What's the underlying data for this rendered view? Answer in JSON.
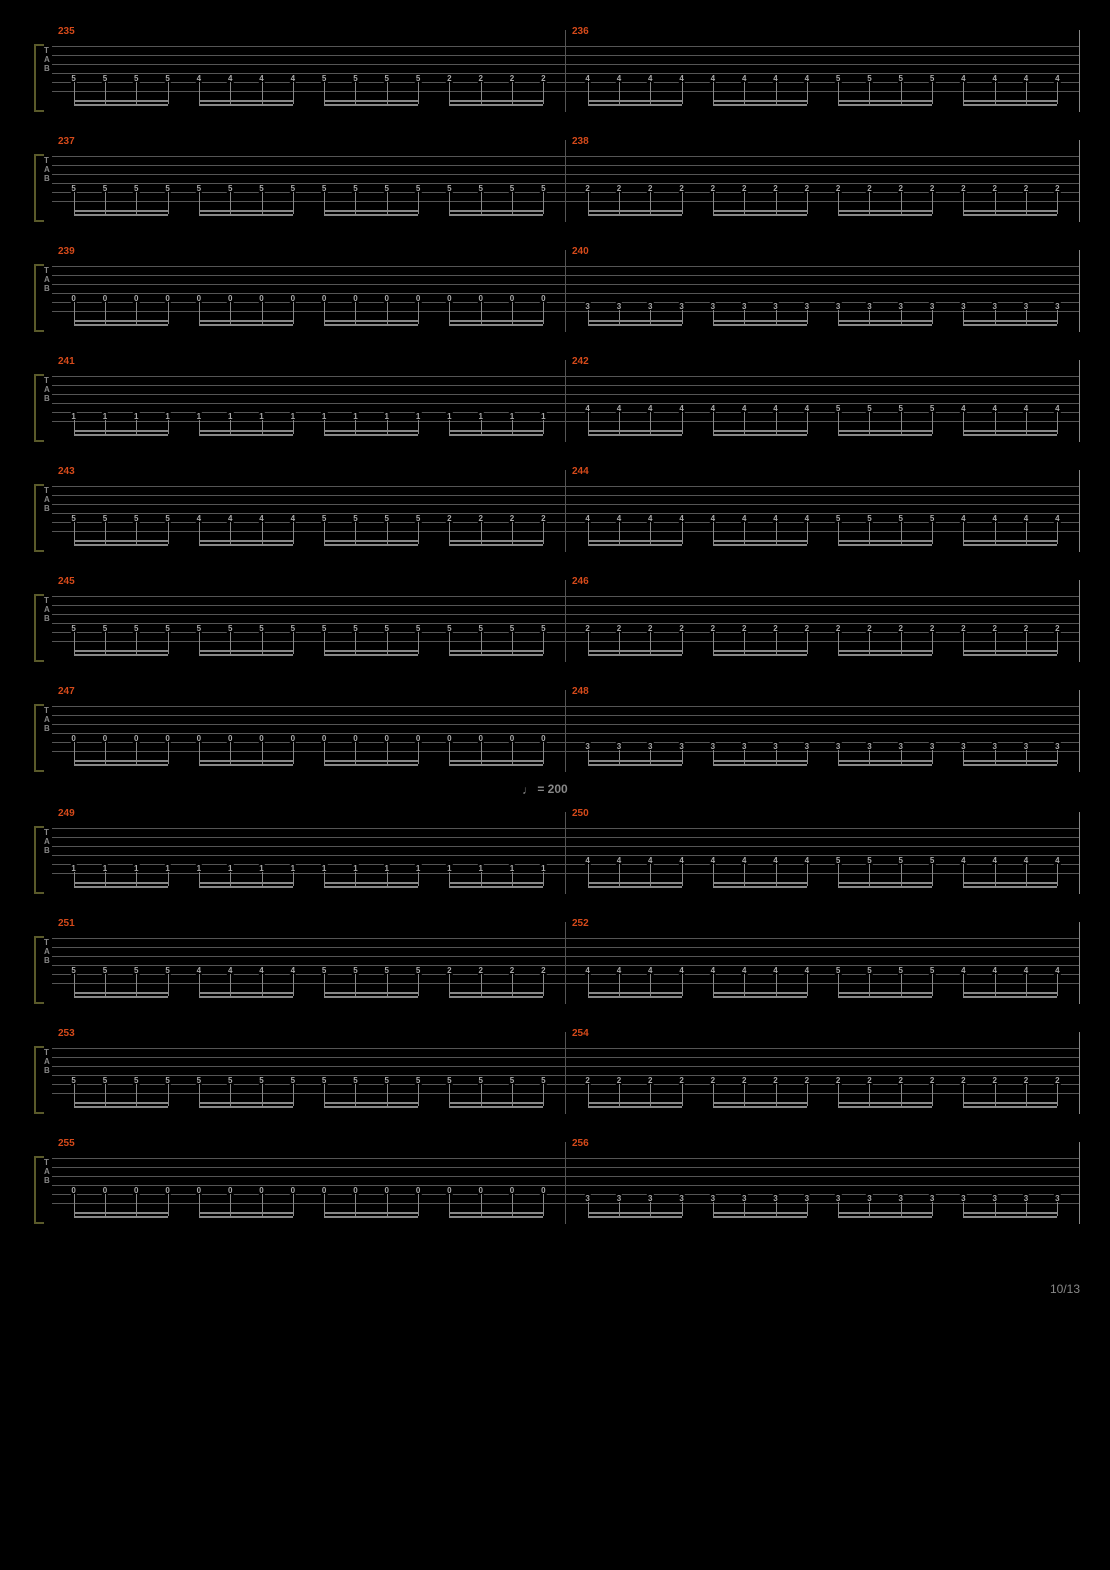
{
  "page_number": "10/13",
  "background_color": "#000000",
  "measure_number_color": "#d64a1a",
  "staff_line_color": "#555555",
  "note_color": "#aaaaaa",
  "beam_color": "#888888",
  "tab_label_color": "#888888",
  "tab_bracket_color": "#5a5a2a",
  "tab_letters": [
    "T",
    "A",
    "B"
  ],
  "tempo_marking": {
    "before_measure": 250,
    "text": "= 200",
    "note_symbol": "♩"
  },
  "string_count": 6,
  "systems": [
    {
      "measures": [
        {
          "number": "235",
          "groups": [
            [
              "5",
              "5",
              "5",
              "5"
            ],
            [
              "4",
              "4",
              "4",
              "4"
            ],
            [
              "5",
              "5",
              "5",
              "5"
            ],
            [
              "2",
              "2",
              "2",
              "2"
            ]
          ],
          "string": 5
        },
        {
          "number": "236",
          "groups": [
            [
              "4",
              "4",
              "4",
              "4"
            ],
            [
              "4",
              "4",
              "4",
              "4"
            ],
            [
              "5",
              "5",
              "5",
              "5"
            ],
            [
              "4",
              "4",
              "4",
              "4"
            ]
          ],
          "string": 5
        }
      ]
    },
    {
      "measures": [
        {
          "number": "237",
          "groups": [
            [
              "5",
              "5",
              "5",
              "5"
            ],
            [
              "5",
              "5",
              "5",
              "5"
            ],
            [
              "5",
              "5",
              "5",
              "5"
            ],
            [
              "5",
              "5",
              "5",
              "5"
            ]
          ],
          "string": 5
        },
        {
          "number": "238",
          "groups": [
            [
              "2",
              "2",
              "2",
              "2"
            ],
            [
              "2",
              "2",
              "2",
              "2"
            ],
            [
              "2",
              "2",
              "2",
              "2"
            ],
            [
              "2",
              "2",
              "2",
              "2"
            ]
          ],
          "string": 5
        }
      ]
    },
    {
      "measures": [
        {
          "number": "239",
          "groups": [
            [
              "0",
              "0",
              "0",
              "0"
            ],
            [
              "0",
              "0",
              "0",
              "0"
            ],
            [
              "0",
              "0",
              "0",
              "0"
            ],
            [
              "0",
              "0",
              "0",
              "0"
            ]
          ],
          "string": 5
        },
        {
          "number": "240",
          "groups": [
            [
              "3",
              "3",
              "3",
              "3"
            ],
            [
              "3",
              "3",
              "3",
              "3"
            ],
            [
              "3",
              "3",
              "3",
              "3"
            ],
            [
              "3",
              "3",
              "3",
              "3"
            ]
          ],
          "string": 6
        }
      ]
    },
    {
      "measures": [
        {
          "number": "241",
          "groups": [
            [
              "1",
              "1",
              "1",
              "1"
            ],
            [
              "1",
              "1",
              "1",
              "1"
            ],
            [
              "1",
              "1",
              "1",
              "1"
            ],
            [
              "1",
              "1",
              "1",
              "1"
            ]
          ],
          "string": 6
        },
        {
          "number": "242",
          "groups": [
            [
              "4",
              "4",
              "4",
              "4"
            ],
            [
              "4",
              "4",
              "4",
              "4"
            ],
            [
              "5",
              "5",
              "5",
              "5"
            ],
            [
              "4",
              "4",
              "4",
              "4"
            ]
          ],
          "string": 5
        }
      ]
    },
    {
      "measures": [
        {
          "number": "243",
          "groups": [
            [
              "5",
              "5",
              "5",
              "5"
            ],
            [
              "4",
              "4",
              "4",
              "4"
            ],
            [
              "5",
              "5",
              "5",
              "5"
            ],
            [
              "2",
              "2",
              "2",
              "2"
            ]
          ],
          "string": 5
        },
        {
          "number": "244",
          "groups": [
            [
              "4",
              "4",
              "4",
              "4"
            ],
            [
              "4",
              "4",
              "4",
              "4"
            ],
            [
              "5",
              "5",
              "5",
              "5"
            ],
            [
              "4",
              "4",
              "4",
              "4"
            ]
          ],
          "string": 5
        }
      ]
    },
    {
      "measures": [
        {
          "number": "245",
          "groups": [
            [
              "5",
              "5",
              "5",
              "5"
            ],
            [
              "5",
              "5",
              "5",
              "5"
            ],
            [
              "5",
              "5",
              "5",
              "5"
            ],
            [
              "5",
              "5",
              "5",
              "5"
            ]
          ],
          "string": 5
        },
        {
          "number": "246",
          "groups": [
            [
              "2",
              "2",
              "2",
              "2"
            ],
            [
              "2",
              "2",
              "2",
              "2"
            ],
            [
              "2",
              "2",
              "2",
              "2"
            ],
            [
              "2",
              "2",
              "2",
              "2"
            ]
          ],
          "string": 5
        }
      ]
    },
    {
      "measures": [
        {
          "number": "247",
          "groups": [
            [
              "0",
              "0",
              "0",
              "0"
            ],
            [
              "0",
              "0",
              "0",
              "0"
            ],
            [
              "0",
              "0",
              "0",
              "0"
            ],
            [
              "0",
              "0",
              "0",
              "0"
            ]
          ],
          "string": 5
        },
        {
          "number": "248",
          "groups": [
            [
              "3",
              "3",
              "3",
              "3"
            ],
            [
              "3",
              "3",
              "3",
              "3"
            ],
            [
              "3",
              "3",
              "3",
              "3"
            ],
            [
              "3",
              "3",
              "3",
              "3"
            ]
          ],
          "string": 6
        }
      ]
    },
    {
      "measures": [
        {
          "number": "249",
          "groups": [
            [
              "1",
              "1",
              "1",
              "1"
            ],
            [
              "1",
              "1",
              "1",
              "1"
            ],
            [
              "1",
              "1",
              "1",
              "1"
            ],
            [
              "1",
              "1",
              "1",
              "1"
            ]
          ],
          "string": 6
        },
        {
          "number": "250",
          "groups": [
            [
              "4",
              "4",
              "4",
              "4"
            ],
            [
              "4",
              "4",
              "4",
              "4"
            ],
            [
              "5",
              "5",
              "5",
              "5"
            ],
            [
              "4",
              "4",
              "4",
              "4"
            ]
          ],
          "string": 5
        }
      ],
      "has_tempo": true
    },
    {
      "measures": [
        {
          "number": "251",
          "groups": [
            [
              "5",
              "5",
              "5",
              "5"
            ],
            [
              "4",
              "4",
              "4",
              "4"
            ],
            [
              "5",
              "5",
              "5",
              "5"
            ],
            [
              "2",
              "2",
              "2",
              "2"
            ]
          ],
          "string": 5
        },
        {
          "number": "252",
          "groups": [
            [
              "4",
              "4",
              "4",
              "4"
            ],
            [
              "4",
              "4",
              "4",
              "4"
            ],
            [
              "5",
              "5",
              "5",
              "5"
            ],
            [
              "4",
              "4",
              "4",
              "4"
            ]
          ],
          "string": 5
        }
      ]
    },
    {
      "measures": [
        {
          "number": "253",
          "groups": [
            [
              "5",
              "5",
              "5",
              "5"
            ],
            [
              "5",
              "5",
              "5",
              "5"
            ],
            [
              "5",
              "5",
              "5",
              "5"
            ],
            [
              "5",
              "5",
              "5",
              "5"
            ]
          ],
          "string": 5
        },
        {
          "number": "254",
          "groups": [
            [
              "2",
              "2",
              "2",
              "2"
            ],
            [
              "2",
              "2",
              "2",
              "2"
            ],
            [
              "2",
              "2",
              "2",
              "2"
            ],
            [
              "2",
              "2",
              "2",
              "2"
            ]
          ],
          "string": 5
        }
      ]
    },
    {
      "measures": [
        {
          "number": "255",
          "groups": [
            [
              "0",
              "0",
              "0",
              "0"
            ],
            [
              "0",
              "0",
              "0",
              "0"
            ],
            [
              "0",
              "0",
              "0",
              "0"
            ],
            [
              "0",
              "0",
              "0",
              "0"
            ]
          ],
          "string": 5
        },
        {
          "number": "256",
          "groups": [
            [
              "3",
              "3",
              "3",
              "3"
            ],
            [
              "3",
              "3",
              "3",
              "3"
            ],
            [
              "3",
              "3",
              "3",
              "3"
            ],
            [
              "3",
              "3",
              "3",
              "3"
            ]
          ],
          "string": 6
        }
      ]
    }
  ]
}
